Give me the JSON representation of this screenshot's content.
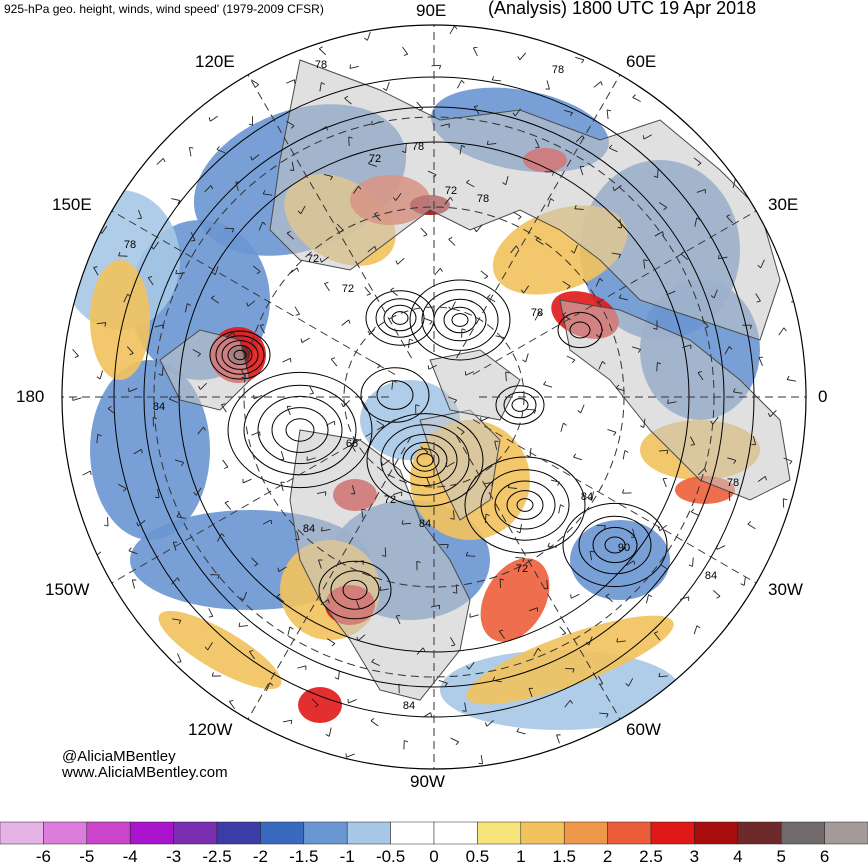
{
  "header": {
    "left_title": "925-hPa geo. height, winds, wind speed' (1979-2009 CFSR)",
    "right_title": "(Analysis) 1800 UTC 19 Apr 2018"
  },
  "longitude_labels": {
    "e90": "90E",
    "e120": "120E",
    "e60": "60E",
    "e150": "150E",
    "e30": "30E",
    "l180": "180",
    "l0": "0",
    "w150": "150W",
    "w30": "30W",
    "w120": "120W",
    "w60": "60W",
    "w90": "90W"
  },
  "contour_labels": [
    "78",
    "78",
    "72",
    "78",
    "72",
    "78",
    "78",
    "72",
    "72",
    "78",
    "84",
    "66",
    "72",
    "84",
    "84",
    "84",
    "90",
    "84",
    "72",
    "84",
    "78"
  ],
  "credit": {
    "handle": "@AliciaMBentley",
    "website": "www.AliciaMBentley.com"
  },
  "colorbar": {
    "colors": [
      "#e6b3e6",
      "#dc7ddc",
      "#cc44cc",
      "#aa14cc",
      "#7a2eb0",
      "#3c3ca8",
      "#3a6ac0",
      "#6a96d2",
      "#a6c8e6",
      "#ffffff",
      "#ffffff",
      "#f7e57a",
      "#f2c25c",
      "#f0984a",
      "#ec5e3a",
      "#e01818",
      "#a80c0c",
      "#6e2a2a",
      "#706a6a",
      "#a49a9a"
    ],
    "labels": [
      "-6",
      "-5",
      "-4",
      "-3",
      "-2.5",
      "-2",
      "-1.5",
      "-1",
      "-0.5",
      "0",
      "0.5",
      "1",
      "1.5",
      "2",
      "2.5",
      "3",
      "4",
      "5",
      "6"
    ]
  }
}
